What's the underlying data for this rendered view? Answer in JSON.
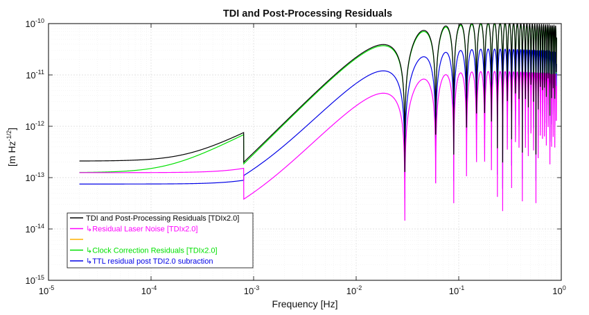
{
  "chart_data": {
    "type": "line",
    "title": "TDI and Post-Processing Residuals",
    "xlabel": "Frequency  [Hz]",
    "ylabel": "[m Hz",
    "ylabel_exp": "-1/2",
    "ylabel_close": "]",
    "xscale": "log",
    "yscale": "log",
    "xlim": [
      1e-05,
      1
    ],
    "ylim": [
      1e-15,
      1e-10
    ],
    "grid": true,
    "legend_position": "bottom-left",
    "xticks": [
      {
        "base": "10",
        "exp": "-5",
        "value": 1e-05
      },
      {
        "base": "10",
        "exp": "-4",
        "value": 0.0001
      },
      {
        "base": "10",
        "exp": "-3",
        "value": 0.001
      },
      {
        "base": "10",
        "exp": "-2",
        "value": 0.01
      },
      {
        "base": "10",
        "exp": "-1",
        "value": 0.1
      },
      {
        "base": "10",
        "exp": "0",
        "value": 1
      }
    ],
    "yticks": [
      {
        "base": "10",
        "exp": "-15",
        "value": 1e-15
      },
      {
        "base": "10",
        "exp": "-14",
        "value": 1e-14
      },
      {
        "base": "10",
        "exp": "-13",
        "value": 1e-13
      },
      {
        "base": "10",
        "exp": "-12",
        "value": 1e-12
      },
      {
        "base": "10",
        "exp": "-11",
        "value": 1e-11
      },
      {
        "base": "10",
        "exp": "-10",
        "value": 1e-10
      }
    ],
    "series": [
      {
        "name": "TDI and Post-Processing Residuals [TDIx2.0]",
        "color": "#000000",
        "fmin": 2e-05,
        "fmax": 0.9,
        "low_level": 2.1e-13,
        "corner_freq": 0.000232,
        "peak": 3.9e-11
      },
      {
        "name": "↳Residual Laser Noise [TDIx2.0]",
        "color": "#ff00ff",
        "fmin": 2e-05,
        "fmax": 0.9,
        "low_level": 1.25e-13,
        "corner_freq": 0.00116,
        "peak": 4.4e-12
      },
      {
        "name": "",
        "color": "#ffb000",
        "fmin": 2e-05,
        "fmax": 0.9
      },
      {
        "name": "↳Clock Correction Residuals [TDIx2.0]",
        "color": "#00e000",
        "fmin": 2e-05,
        "fmax": 0.9,
        "low_level": 1.25e-13,
        "corner_freq": 0.000148,
        "peak": 3.7e-11
      },
      {
        "name": "↳TTL residual post TDI2.0 subraction",
        "color": "#0000e6",
        "fmin": 2e-05,
        "fmax": 0.9,
        "low_level": 7.5e-14,
        "corner_freq": 0.00126,
        "peak": 1.2e-11
      }
    ],
    "common_response": {
      "null_spacing_hz": 0.0298,
      "first_peak_freq": 0.018,
      "high_freq_level_ratio": 0.5
    }
  }
}
